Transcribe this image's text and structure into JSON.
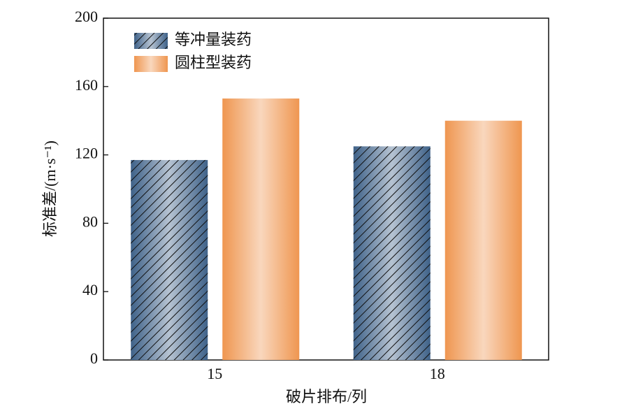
{
  "chart_data": {
    "type": "bar",
    "categories": [
      "15",
      "18"
    ],
    "series": [
      {
        "name": "等冲量装药",
        "color": "#3f6289",
        "hatch": true,
        "values": [
          117,
          125
        ]
      },
      {
        "name": "圆柱型装药",
        "color": "#ef9650",
        "values": [
          153,
          140
        ]
      }
    ],
    "xlabel": "破片排布/列",
    "ylabel": "标准差/(m·s⁻¹)",
    "ylim": [
      0,
      200
    ],
    "yticks": [
      0,
      40,
      80,
      120,
      160,
      200
    ],
    "legend": "upper left"
  }
}
